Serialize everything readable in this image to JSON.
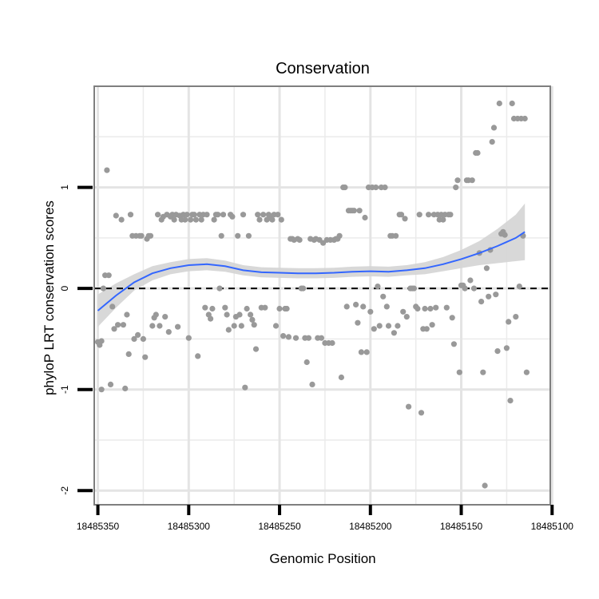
{
  "chart_data": {
    "type": "scatter",
    "title": "Conservation",
    "xlabel": "Genomic Position",
    "ylabel": "phyloP LRT conservation scores",
    "xlim": [
      18485101,
      18485352
    ],
    "x_reversed": true,
    "ylim": [
      -2.14,
      2.0
    ],
    "x_ticks": [
      18485350,
      18485300,
      18485250,
      18485200,
      18485150,
      18485100
    ],
    "x_tick_labels": [
      "18485350",
      "18485300",
      "18485250",
      "18485200",
      "18485150",
      "18485100"
    ],
    "y_ticks": [
      -2,
      -1,
      0,
      1
    ],
    "y_tick_labels": [
      "-2",
      "-1",
      "0",
      "1"
    ],
    "grid": true,
    "reference_line": {
      "y": 0,
      "style": "dashed"
    },
    "colors": {
      "points": "#999999",
      "smooth": "#3366FF",
      "band": "#d4d4d4",
      "border": "#7f7f7f",
      "grid": "#ebebeb"
    },
    "points": [
      [
        18485350,
        -0.53
      ],
      [
        18485349,
        -0.56
      ],
      [
        18485348,
        -1.0
      ],
      [
        18485348,
        -0.52
      ],
      [
        18485347,
        0.0
      ],
      [
        18485346,
        0.13
      ],
      [
        18485345,
        1.17
      ],
      [
        18485344,
        0.13
      ],
      [
        18485343,
        -0.95
      ],
      [
        18485342,
        -0.18
      ],
      [
        18485341,
        -0.4
      ],
      [
        18485340,
        0.72
      ],
      [
        18485339,
        -0.36
      ],
      [
        18485337,
        0.68
      ],
      [
        18485336,
        -0.36
      ],
      [
        18485335,
        -0.99
      ],
      [
        18485334,
        -0.26
      ],
      [
        18485333,
        -0.65
      ],
      [
        18485332,
        0.73
      ],
      [
        18485331,
        0.52
      ],
      [
        18485330,
        -0.5
      ],
      [
        18485329,
        0.52
      ],
      [
        18485328,
        -0.46
      ],
      [
        18485327,
        0.52
      ],
      [
        18485326,
        0.52
      ],
      [
        18485325,
        -0.5
      ],
      [
        18485324,
        -0.68
      ],
      [
        18485323,
        0.49
      ],
      [
        18485322,
        0.52
      ],
      [
        18485321,
        0.52
      ],
      [
        18485320,
        -0.37
      ],
      [
        18485319,
        -0.29
      ],
      [
        18485318,
        -0.26
      ],
      [
        18485317,
        0.73
      ],
      [
        18485316,
        -0.37
      ],
      [
        18485315,
        0.68
      ],
      [
        18485314,
        0.71
      ],
      [
        18485313,
        -0.28
      ],
      [
        18485312,
        0.73
      ],
      [
        18485311,
        -0.43
      ],
      [
        18485310,
        0.71
      ],
      [
        18485309,
        0.73
      ],
      [
        18485308,
        0.68
      ],
      [
        18485307,
        0.73
      ],
      [
        18485306,
        -0.38
      ],
      [
        18485305,
        0.72
      ],
      [
        18485304,
        0.68
      ],
      [
        18485303,
        0.73
      ],
      [
        18485302,
        0.68
      ],
      [
        18485301,
        0.73
      ],
      [
        18485300,
        -0.49
      ],
      [
        18485299,
        0.68
      ],
      [
        18485298,
        0.73
      ],
      [
        18485297,
        0.73
      ],
      [
        18485296,
        0.68
      ],
      [
        18485295,
        -0.67
      ],
      [
        18485294,
        0.73
      ],
      [
        18485293,
        0.68
      ],
      [
        18485292,
        0.73
      ],
      [
        18485291,
        -0.19
      ],
      [
        18485290,
        0.73
      ],
      [
        18485289,
        -0.26
      ],
      [
        18485288,
        -0.3
      ],
      [
        18485287,
        -0.2
      ],
      [
        18485286,
        0.68
      ],
      [
        18485285,
        0.73
      ],
      [
        18485284,
        0.73
      ],
      [
        18485283,
        0.0
      ],
      [
        18485282,
        0.52
      ],
      [
        18485281,
        0.73
      ],
      [
        18485280,
        -0.19
      ],
      [
        18485279,
        -0.26
      ],
      [
        18485278,
        -0.41
      ],
      [
        18485277,
        0.73
      ],
      [
        18485276,
        0.71
      ],
      [
        18485275,
        -0.37
      ],
      [
        18485274,
        -0.28
      ],
      [
        18485273,
        0.52
      ],
      [
        18485272,
        -0.26
      ],
      [
        18485271,
        -0.37
      ],
      [
        18485270,
        0.73
      ],
      [
        18485269,
        -0.98
      ],
      [
        18485268,
        -0.2
      ],
      [
        18485267,
        0.52
      ],
      [
        18485266,
        -0.26
      ],
      [
        18485265,
        -0.31
      ],
      [
        18485264,
        -0.36
      ],
      [
        18485263,
        -0.6
      ],
      [
        18485262,
        0.73
      ],
      [
        18485261,
        0.68
      ],
      [
        18485260,
        -0.19
      ],
      [
        18485259,
        0.73
      ],
      [
        18485258,
        -0.19
      ],
      [
        18485257,
        0.68
      ],
      [
        18485256,
        0.73
      ],
      [
        18485255,
        0.71
      ],
      [
        18485254,
        0.68
      ],
      [
        18485253,
        0.73
      ],
      [
        18485252,
        -0.37
      ],
      [
        18485251,
        0.73
      ],
      [
        18485250,
        -0.2
      ],
      [
        18485249,
        0.68
      ],
      [
        18485248,
        -0.47
      ],
      [
        18485247,
        -0.2
      ],
      [
        18485246,
        -0.2
      ],
      [
        18485245,
        -0.48
      ],
      [
        18485244,
        0.49
      ],
      [
        18485243,
        0.49
      ],
      [
        18485242,
        0.48
      ],
      [
        18485241,
        -0.49
      ],
      [
        18485240,
        0.49
      ],
      [
        18485239,
        0.48
      ],
      [
        18485238,
        0.0
      ],
      [
        18485237,
        0.0
      ],
      [
        18485236,
        -0.49
      ],
      [
        18485235,
        -0.73
      ],
      [
        18485234,
        -0.49
      ],
      [
        18485233,
        0.49
      ],
      [
        18485232,
        -0.95
      ],
      [
        18485231,
        0.48
      ],
      [
        18485230,
        0.49
      ],
      [
        18485229,
        -0.49
      ],
      [
        18485228,
        0.48
      ],
      [
        18485227,
        -0.49
      ],
      [
        18485226,
        0.45
      ],
      [
        18485225,
        -0.54
      ],
      [
        18485224,
        0.48
      ],
      [
        18485223,
        -0.54
      ],
      [
        18485222,
        0.48
      ],
      [
        18485221,
        -0.54
      ],
      [
        18485220,
        0.48
      ],
      [
        18485219,
        0.49
      ],
      [
        18485218,
        0.49
      ],
      [
        18485217,
        0.52
      ],
      [
        18485216,
        -0.88
      ],
      [
        18485215,
        1.0
      ],
      [
        18485214,
        1.0
      ],
      [
        18485213,
        -0.18
      ],
      [
        18485212,
        0.77
      ],
      [
        18485211,
        0.77
      ],
      [
        18485210,
        0.77
      ],
      [
        18485209,
        0.77
      ],
      [
        18485208,
        -0.16
      ],
      [
        18485207,
        -0.34
      ],
      [
        18485206,
        0.77
      ],
      [
        18485205,
        -0.63
      ],
      [
        18485204,
        -0.18
      ],
      [
        18485203,
        0.7
      ],
      [
        18485202,
        -0.63
      ],
      [
        18485201,
        1.0
      ],
      [
        18485200,
        -0.23
      ],
      [
        18485199,
        1.0
      ],
      [
        18485198,
        -0.4
      ],
      [
        18485197,
        1.0
      ],
      [
        18485196,
        0.02
      ],
      [
        18485195,
        -0.37
      ],
      [
        18485194,
        1.0
      ],
      [
        18485193,
        -0.08
      ],
      [
        18485192,
        1.0
      ],
      [
        18485191,
        -0.18
      ],
      [
        18485190,
        -0.37
      ],
      [
        18485189,
        0.52
      ],
      [
        18485188,
        0.52
      ],
      [
        18485187,
        -0.44
      ],
      [
        18485186,
        0.52
      ],
      [
        18485185,
        -0.37
      ],
      [
        18485184,
        0.73
      ],
      [
        18485183,
        0.73
      ],
      [
        18485182,
        -0.23
      ],
      [
        18485181,
        0.69
      ],
      [
        18485180,
        -0.28
      ],
      [
        18485179,
        -1.17
      ],
      [
        18485178,
        0.0
      ],
      [
        18485177,
        0.0
      ],
      [
        18485176,
        0.0
      ],
      [
        18485175,
        -0.18
      ],
      [
        18485174,
        -0.2
      ],
      [
        18485173,
        0.73
      ],
      [
        18485172,
        -1.23
      ],
      [
        18485171,
        -0.4
      ],
      [
        18485170,
        -0.2
      ],
      [
        18485169,
        -0.4
      ],
      [
        18485168,
        0.73
      ],
      [
        18485167,
        -0.2
      ],
      [
        18485166,
        -0.36
      ],
      [
        18485165,
        0.73
      ],
      [
        18485164,
        -0.19
      ],
      [
        18485163,
        0.73
      ],
      [
        18485162,
        0.68
      ],
      [
        18485161,
        0.73
      ],
      [
        18485160,
        0.68
      ],
      [
        18485159,
        0.73
      ],
      [
        18485158,
        -0.19
      ],
      [
        18485157,
        0.73
      ],
      [
        18485156,
        0.73
      ],
      [
        18485155,
        -0.29
      ],
      [
        18485154,
        -0.55
      ],
      [
        18485153,
        1.0
      ],
      [
        18485152,
        1.07
      ],
      [
        18485151,
        -0.83
      ],
      [
        18485150,
        0.03
      ],
      [
        18485149,
        0.03
      ],
      [
        18485148,
        0.0
      ],
      [
        18485147,
        1.07
      ],
      [
        18485146,
        1.07
      ],
      [
        18485145,
        0.08
      ],
      [
        18485144,
        1.07
      ],
      [
        18485143,
        0.0
      ],
      [
        18485142,
        1.34
      ],
      [
        18485141,
        1.34
      ],
      [
        18485140,
        0.35
      ],
      [
        18485139,
        -0.13
      ],
      [
        18485138,
        -0.83
      ],
      [
        18485137,
        -1.95
      ],
      [
        18485136,
        0.2
      ],
      [
        18485135,
        -0.08
      ],
      [
        18485134,
        0.38
      ],
      [
        18485133,
        1.45
      ],
      [
        18485132,
        1.59
      ],
      [
        18485131,
        -0.06
      ],
      [
        18485130,
        -0.62
      ],
      [
        18485129,
        1.83
      ],
      [
        18485128,
        0.54
      ],
      [
        18485127,
        0.56
      ],
      [
        18485126,
        0.53
      ],
      [
        18485125,
        -0.59
      ],
      [
        18485124,
        -0.33
      ],
      [
        18485123,
        -1.11
      ],
      [
        18485122,
        1.83
      ],
      [
        18485121,
        1.68
      ],
      [
        18485120,
        -0.28
      ],
      [
        18485119,
        1.68
      ],
      [
        18485118,
        0.02
      ],
      [
        18485117,
        1.68
      ],
      [
        18485116,
        0.52
      ],
      [
        18485115,
        1.68
      ],
      [
        18485114,
        -0.83
      ]
    ],
    "smooth_x": [
      18485350,
      18485340,
      18485330,
      18485320,
      18485310,
      18485300,
      18485290,
      18485280,
      18485270,
      18485260,
      18485250,
      18485240,
      18485230,
      18485220,
      18485210,
      18485200,
      18485190,
      18485180,
      18485170,
      18485160,
      18485150,
      18485140,
      18485130,
      18485120,
      18485115
    ],
    "smooth_y": [
      -0.22,
      -0.07,
      0.06,
      0.15,
      0.2,
      0.23,
      0.24,
      0.22,
      0.18,
      0.16,
      0.155,
      0.15,
      0.15,
      0.155,
      0.165,
      0.17,
      0.165,
      0.18,
      0.2,
      0.24,
      0.29,
      0.35,
      0.42,
      0.5,
      0.56
    ],
    "smooth_se": [
      0.16,
      0.12,
      0.08,
      0.07,
      0.06,
      0.06,
      0.06,
      0.055,
      0.05,
      0.05,
      0.05,
      0.05,
      0.05,
      0.05,
      0.05,
      0.05,
      0.05,
      0.05,
      0.06,
      0.07,
      0.09,
      0.12,
      0.17,
      0.23,
      0.28
    ]
  }
}
